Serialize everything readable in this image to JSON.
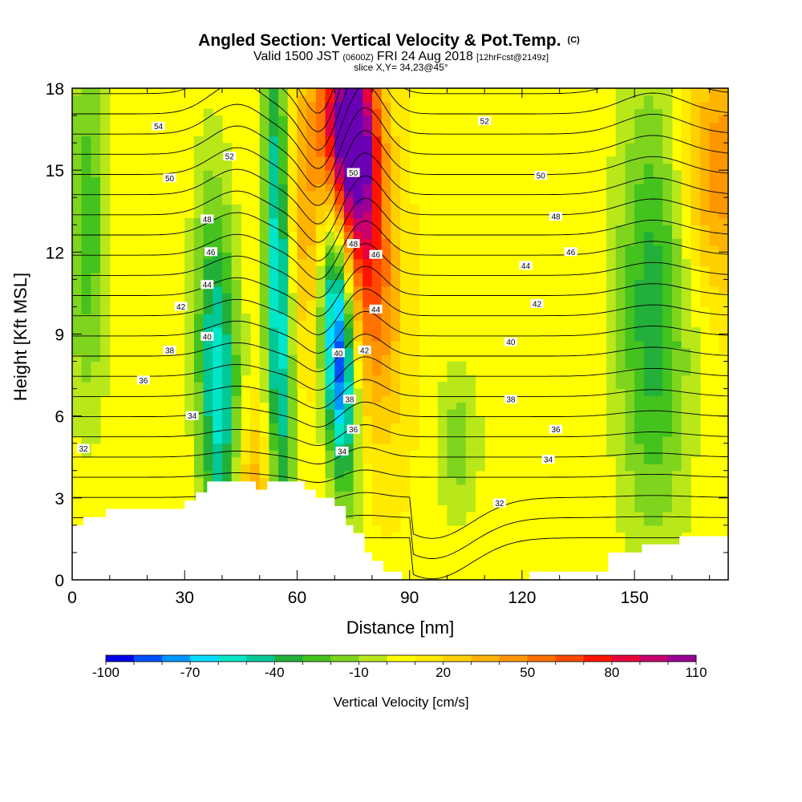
{
  "header": {
    "title": "Angled Section: Vertical Velocity & Pot.Temp.",
    "title_unit": "(C)",
    "valid_prefix": "Valid 1500 JST",
    "valid_zulu": "(0600Z)",
    "valid_date": "FRI 24 Aug 2018",
    "forecast": "[12hrFcst@2149z]",
    "slice": "slice X,Y= 34,23@45°"
  },
  "chart_data": {
    "type": "heatmap",
    "xlabel": "Distance [nm]",
    "ylabel": "Height [Kft MSL]",
    "xlim": [
      0,
      175
    ],
    "ylim": [
      0,
      18
    ],
    "x_ticks": [
      0,
      30,
      60,
      90,
      120,
      150
    ],
    "y_ticks": [
      0,
      3,
      6,
      9,
      12,
      15,
      18
    ],
    "x_minor_step": 10,
    "y_minor_step": 1,
    "field": {
      "name": "Vertical Velocity",
      "colorbar_label": "Vertical Velocity [cm/s]",
      "levels": [
        -100,
        -90,
        -80,
        -70,
        -60,
        -50,
        -40,
        -30,
        -20,
        -10,
        0,
        10,
        20,
        30,
        40,
        50,
        60,
        70,
        80,
        90,
        100,
        110
      ],
      "colorbar_tick_labels": [
        -100,
        -70,
        -40,
        -10,
        20,
        50,
        80,
        110
      ],
      "colors": [
        "#0000e8",
        "#0050ff",
        "#0096ff",
        "#00dcff",
        "#00e6c8",
        "#00c896",
        "#22b03a",
        "#44c21e",
        "#7fd41e",
        "#b8e81a",
        "#ffff00",
        "#ffea00",
        "#ffd000",
        "#ffb400",
        "#ff9600",
        "#ff7200",
        "#ff4800",
        "#ff1400",
        "#e8003c",
        "#c8006e",
        "#9a0096",
        "#6a00b4"
      ],
      "features": [
        {
          "kind": "updraft",
          "x": 74,
          "y": 16.5,
          "sx": 5,
          "sy": 2.5,
          "amp": 110,
          "tilt": -0.15
        },
        {
          "kind": "updraft",
          "x": 79,
          "y": 12,
          "sx": 5,
          "sy": 4,
          "amp": 60,
          "tilt": -0.45
        },
        {
          "kind": "updraft",
          "x": 62,
          "y": 14,
          "sx": 5,
          "sy": 4,
          "amp": 30,
          "tilt": 0
        },
        {
          "kind": "downdraft",
          "x": 71,
          "y": 8.5,
          "sx": 3,
          "sy": 3.5,
          "amp": -100,
          "tilt": -0.3
        },
        {
          "kind": "downdraft",
          "x": 55,
          "y": 11,
          "sx": 2.5,
          "sy": 7,
          "amp": -75,
          "tilt": -0.1
        },
        {
          "kind": "downdraft",
          "x": 39,
          "y": 7,
          "sx": 4,
          "sy": 5,
          "amp": -65,
          "tilt": -0.2
        },
        {
          "kind": "downdraft",
          "x": 155,
          "y": 10,
          "sx": 7,
          "sy": 6,
          "amp": -45,
          "tilt": 0
        },
        {
          "kind": "downdraft",
          "x": 4,
          "y": 13,
          "sx": 4,
          "sy": 5,
          "amp": -35,
          "tilt": 0
        },
        {
          "kind": "downdraft",
          "x": 103,
          "y": 5,
          "sx": 4,
          "sy": 2,
          "amp": -25,
          "tilt": 0
        },
        {
          "kind": "updraft",
          "x": 173,
          "y": 15,
          "sx": 8,
          "sy": 3,
          "amp": 40,
          "tilt": 0
        },
        {
          "kind": "updraft",
          "x": 48,
          "y": 3.5,
          "sx": 4,
          "sy": 2,
          "amp": 30,
          "tilt": 0
        }
      ]
    },
    "contours": {
      "name": "Pot.Temp.",
      "unit": "C",
      "levels": [
        32,
        33,
        34,
        35,
        36,
        37,
        38,
        39,
        40,
        41,
        42,
        43,
        44,
        45,
        46,
        47,
        48,
        49,
        50,
        51,
        52,
        53,
        54,
        55
      ],
      "labels": [
        {
          "text": "54",
          "x": 23,
          "y": 16.6
        },
        {
          "text": "52",
          "x": 42,
          "y": 15.5
        },
        {
          "text": "50",
          "x": 26,
          "y": 14.7
        },
        {
          "text": "48",
          "x": 36,
          "y": 13.2
        },
        {
          "text": "46",
          "x": 37,
          "y": 12
        },
        {
          "text": "44",
          "x": 36,
          "y": 10.8
        },
        {
          "text": "42",
          "x": 29,
          "y": 10
        },
        {
          "text": "40",
          "x": 36,
          "y": 8.9
        },
        {
          "text": "38",
          "x": 26,
          "y": 8.4
        },
        {
          "text": "36",
          "x": 19,
          "y": 7.3
        },
        {
          "text": "34",
          "x": 32,
          "y": 6
        },
        {
          "text": "32",
          "x": 3,
          "y": 4.8
        },
        {
          "text": "50",
          "x": 75,
          "y": 14.9
        },
        {
          "text": "48",
          "x": 75,
          "y": 12.3
        },
        {
          "text": "46",
          "x": 81,
          "y": 11.9
        },
        {
          "text": "44",
          "x": 81,
          "y": 9.9
        },
        {
          "text": "42",
          "x": 78,
          "y": 8.4
        },
        {
          "text": "40",
          "x": 71,
          "y": 8.3
        },
        {
          "text": "38",
          "x": 74,
          "y": 6.6
        },
        {
          "text": "36",
          "x": 75,
          "y": 5.5
        },
        {
          "text": "34",
          "x": 72,
          "y": 4.7
        },
        {
          "text": "52",
          "x": 110,
          "y": 16.8
        },
        {
          "text": "50",
          "x": 125,
          "y": 14.8
        },
        {
          "text": "48",
          "x": 129,
          "y": 13.3
        },
        {
          "text": "46",
          "x": 133,
          "y": 12
        },
        {
          "text": "44",
          "x": 121,
          "y": 11.5
        },
        {
          "text": "42",
          "x": 124,
          "y": 10.1
        },
        {
          "text": "40",
          "x": 117,
          "y": 8.7
        },
        {
          "text": "38",
          "x": 117,
          "y": 6.6
        },
        {
          "text": "36",
          "x": 129,
          "y": 5.5
        },
        {
          "text": "34",
          "x": 127,
          "y": 4.4
        },
        {
          "text": "32",
          "x": 114,
          "y": 2.8
        }
      ]
    },
    "terrain": [
      [
        0,
        2.0
      ],
      [
        3,
        2.0
      ],
      [
        3,
        2.3
      ],
      [
        9,
        2.3
      ],
      [
        9,
        2.6
      ],
      [
        30,
        2.6
      ],
      [
        30,
        2.9
      ],
      [
        33,
        2.9
      ],
      [
        33,
        3.2
      ],
      [
        36,
        3.2
      ],
      [
        36,
        3.6
      ],
      [
        49,
        3.6
      ],
      [
        49,
        3.3
      ],
      [
        52,
        3.3
      ],
      [
        52,
        3.6
      ],
      [
        62,
        3.6
      ],
      [
        62,
        3.3
      ],
      [
        65,
        3.3
      ],
      [
        65,
        3.0
      ],
      [
        70,
        3.0
      ],
      [
        70,
        2.7
      ],
      [
        73,
        2.7
      ],
      [
        73,
        2.0
      ],
      [
        75,
        2.0
      ],
      [
        75,
        1.7
      ],
      [
        78,
        1.7
      ],
      [
        78,
        1.0
      ],
      [
        80,
        1.0
      ],
      [
        80,
        0.7
      ],
      [
        83,
        0.7
      ],
      [
        83,
        0.3
      ],
      [
        88,
        0.3
      ],
      [
        88,
        0.0
      ],
      [
        122,
        0.0
      ],
      [
        122,
        0.3
      ],
      [
        143,
        0.3
      ],
      [
        143,
        1.0
      ],
      [
        152,
        1.0
      ],
      [
        152,
        1.3
      ],
      [
        162,
        1.3
      ],
      [
        162,
        1.6
      ],
      [
        175,
        1.6
      ]
    ]
  }
}
